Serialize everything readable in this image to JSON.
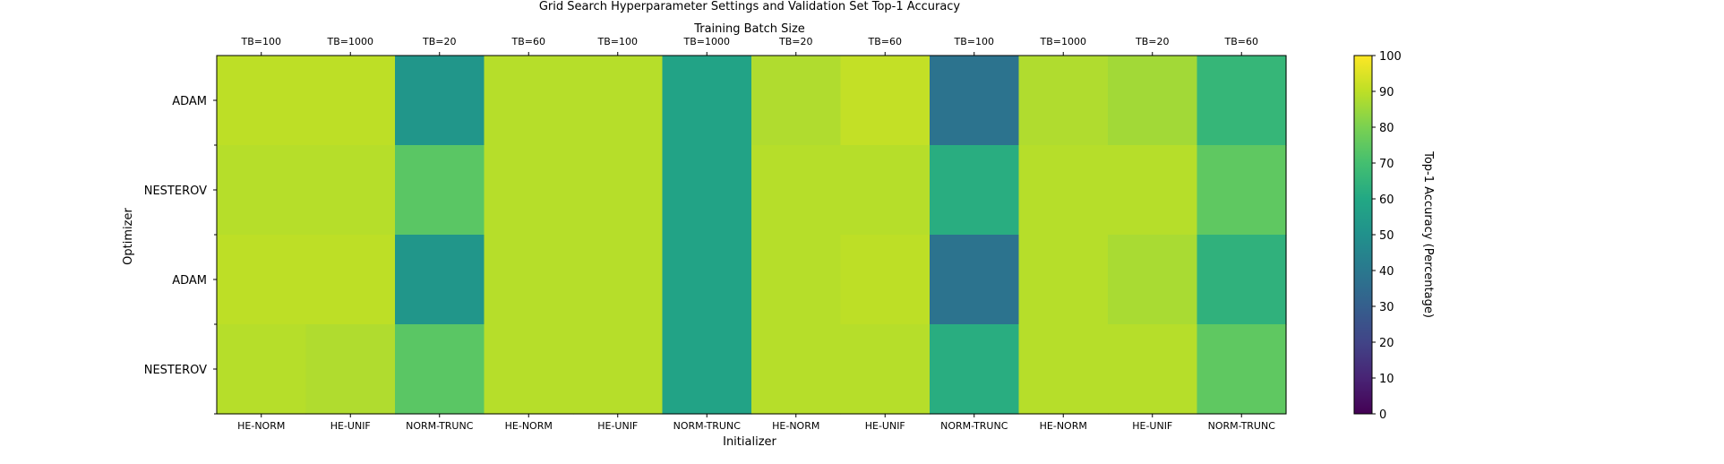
{
  "chart_data": {
    "type": "heatmap",
    "title": "Grid Search Hyperparameter Settings and Validation Set Top-1 Accuracy",
    "x_top_label": "Training Batch Size",
    "x_top_ticks": [
      "TB=100",
      "TB=1000",
      "TB=20",
      "TB=60",
      "TB=100",
      "TB=1000",
      "TB=20",
      "TB=60",
      "TB=100",
      "TB=1000",
      "TB=20",
      "TB=60"
    ],
    "xlabel": "Initializer",
    "x_bottom_ticks": [
      "HE-NORM",
      "HE-UNIF",
      "NORM-TRUNC",
      "HE-NORM",
      "HE-UNIF",
      "NORM-TRUNC",
      "HE-NORM",
      "HE-UNIF",
      "NORM-TRUNC",
      "HE-NORM",
      "HE-UNIF",
      "NORM-TRUNC"
    ],
    "ylabel": "Optimizer",
    "y_ticks": [
      "ADAM",
      "NESTEROV",
      "ADAM",
      "NESTEROV"
    ],
    "values": [
      [
        90,
        90,
        52,
        89,
        89,
        58,
        88,
        91,
        38,
        88,
        86,
        66
      ],
      [
        89,
        89,
        74,
        89,
        89,
        58,
        89,
        89,
        62,
        89,
        89,
        75
      ],
      [
        90,
        90,
        52,
        89,
        89,
        58,
        89,
        90,
        38,
        89,
        87,
        64
      ],
      [
        89,
        88,
        74,
        89,
        89,
        58,
        89,
        89,
        62,
        89,
        89,
        75
      ]
    ],
    "colorbar": {
      "label": "Top-1 Accuracy (Percentage)",
      "range": [
        0,
        100
      ],
      "ticks": [
        0,
        10,
        20,
        30,
        40,
        50,
        60,
        70,
        80,
        90,
        100
      ],
      "colormap": "viridis"
    }
  }
}
